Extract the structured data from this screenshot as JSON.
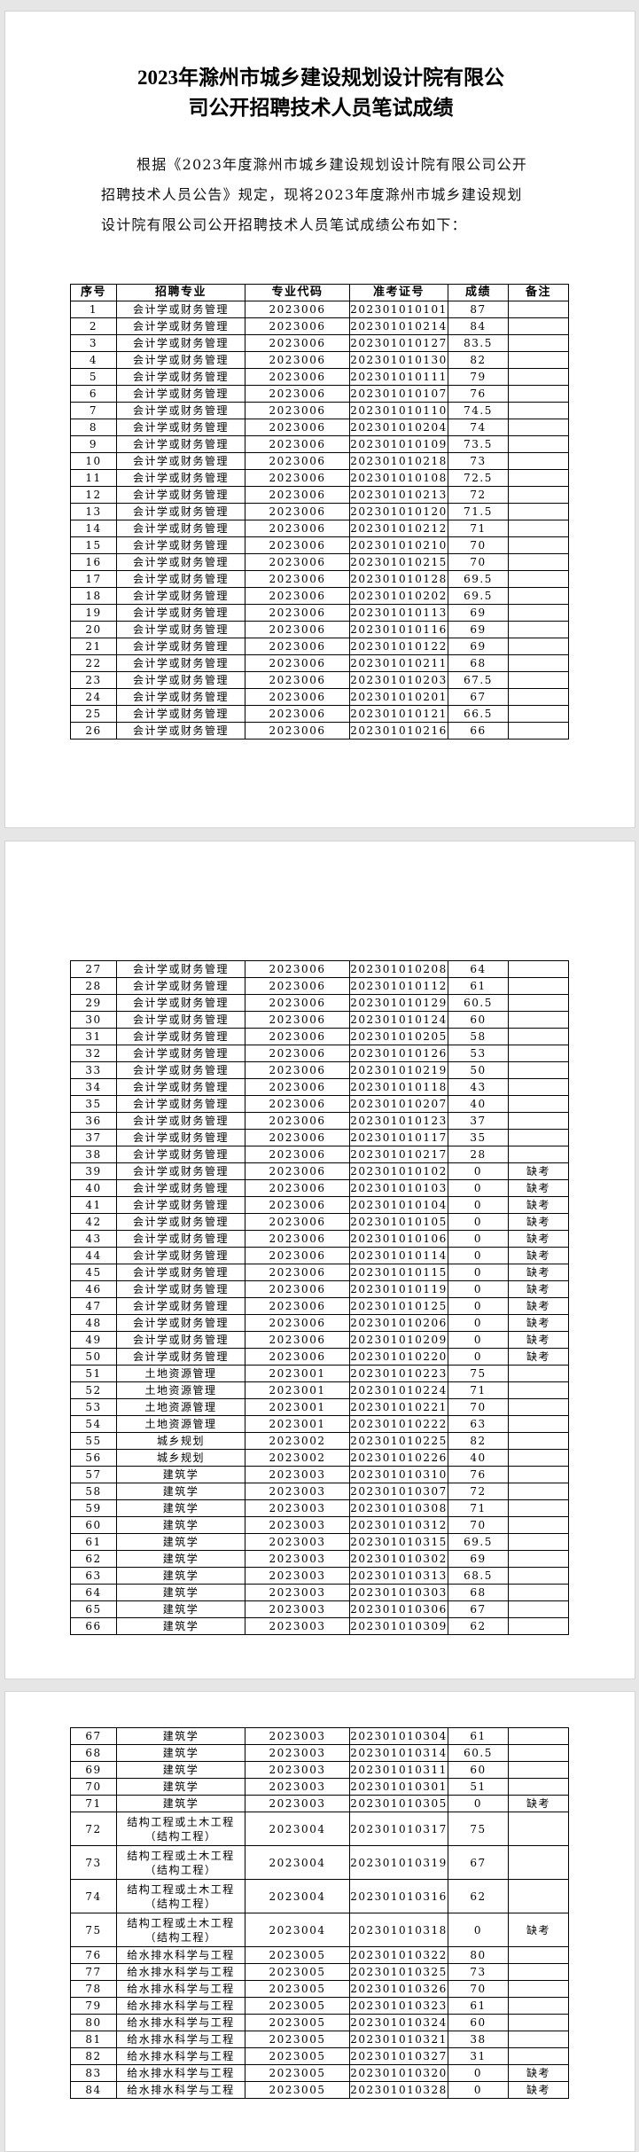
{
  "document": {
    "title_line1": "2023年滁州市城乡建设规划设计院有限公",
    "title_line2": "司公开招聘技术人员笔试成绩",
    "intro": "根据《2023年度滁州市城乡建设规划设计院有限公司公开招聘技术人员公告》规定，现将2023年度滁州市城乡建设规划设计院有限公司公开招聘技术人员笔试成绩公布如下："
  },
  "table": {
    "headers": [
      "序号",
      "招聘专业",
      "专业代码",
      "准考证号",
      "成绩",
      "备注"
    ],
    "pages": [
      {
        "rows": [
          [
            "1",
            "会计学或财务管理",
            "2023006",
            "202301010101",
            "87",
            ""
          ],
          [
            "2",
            "会计学或财务管理",
            "2023006",
            "202301010214",
            "84",
            ""
          ],
          [
            "3",
            "会计学或财务管理",
            "2023006",
            "202301010127",
            "83.5",
            ""
          ],
          [
            "4",
            "会计学或财务管理",
            "2023006",
            "202301010130",
            "82",
            ""
          ],
          [
            "5",
            "会计学或财务管理",
            "2023006",
            "202301010111",
            "79",
            ""
          ],
          [
            "6",
            "会计学或财务管理",
            "2023006",
            "202301010107",
            "76",
            ""
          ],
          [
            "7",
            "会计学或财务管理",
            "2023006",
            "202301010110",
            "74.5",
            ""
          ],
          [
            "8",
            "会计学或财务管理",
            "2023006",
            "202301010204",
            "74",
            ""
          ],
          [
            "9",
            "会计学或财务管理",
            "2023006",
            "202301010109",
            "73.5",
            ""
          ],
          [
            "10",
            "会计学或财务管理",
            "2023006",
            "202301010218",
            "73",
            ""
          ],
          [
            "11",
            "会计学或财务管理",
            "2023006",
            "202301010108",
            "72.5",
            ""
          ],
          [
            "12",
            "会计学或财务管理",
            "2023006",
            "202301010213",
            "72",
            ""
          ],
          [
            "13",
            "会计学或财务管理",
            "2023006",
            "202301010120",
            "71.5",
            ""
          ],
          [
            "14",
            "会计学或财务管理",
            "2023006",
            "202301010212",
            "71",
            ""
          ],
          [
            "15",
            "会计学或财务管理",
            "2023006",
            "202301010210",
            "70",
            ""
          ],
          [
            "16",
            "会计学或财务管理",
            "2023006",
            "202301010215",
            "70",
            ""
          ],
          [
            "17",
            "会计学或财务管理",
            "2023006",
            "202301010128",
            "69.5",
            ""
          ],
          [
            "18",
            "会计学或财务管理",
            "2023006",
            "202301010202",
            "69.5",
            ""
          ],
          [
            "19",
            "会计学或财务管理",
            "2023006",
            "202301010113",
            "69",
            ""
          ],
          [
            "20",
            "会计学或财务管理",
            "2023006",
            "202301010116",
            "69",
            ""
          ],
          [
            "21",
            "会计学或财务管理",
            "2023006",
            "202301010122",
            "69",
            ""
          ],
          [
            "22",
            "会计学或财务管理",
            "2023006",
            "202301010211",
            "68",
            ""
          ],
          [
            "23",
            "会计学或财务管理",
            "2023006",
            "202301010203",
            "67.5",
            ""
          ],
          [
            "24",
            "会计学或财务管理",
            "2023006",
            "202301010201",
            "67",
            ""
          ],
          [
            "25",
            "会计学或财务管理",
            "2023006",
            "202301010121",
            "66.5",
            ""
          ],
          [
            "26",
            "会计学或财务管理",
            "2023006",
            "202301010216",
            "66",
            ""
          ]
        ]
      },
      {
        "rows": [
          [
            "27",
            "会计学或财务管理",
            "2023006",
            "202301010208",
            "64",
            ""
          ],
          [
            "28",
            "会计学或财务管理",
            "2023006",
            "202301010112",
            "61",
            ""
          ],
          [
            "29",
            "会计学或财务管理",
            "2023006",
            "202301010129",
            "60.5",
            ""
          ],
          [
            "30",
            "会计学或财务管理",
            "2023006",
            "202301010124",
            "60",
            ""
          ],
          [
            "31",
            "会计学或财务管理",
            "2023006",
            "202301010205",
            "58",
            ""
          ],
          [
            "32",
            "会计学或财务管理",
            "2023006",
            "202301010126",
            "53",
            ""
          ],
          [
            "33",
            "会计学或财务管理",
            "2023006",
            "202301010219",
            "50",
            ""
          ],
          [
            "34",
            "会计学或财务管理",
            "2023006",
            "202301010118",
            "43",
            ""
          ],
          [
            "35",
            "会计学或财务管理",
            "2023006",
            "202301010207",
            "40",
            ""
          ],
          [
            "36",
            "会计学或财务管理",
            "2023006",
            "202301010123",
            "37",
            ""
          ],
          [
            "37",
            "会计学或财务管理",
            "2023006",
            "202301010117",
            "35",
            ""
          ],
          [
            "38",
            "会计学或财务管理",
            "2023006",
            "202301010217",
            "28",
            ""
          ],
          [
            "39",
            "会计学或财务管理",
            "2023006",
            "202301010102",
            "0",
            "缺考"
          ],
          [
            "40",
            "会计学或财务管理",
            "2023006",
            "202301010103",
            "0",
            "缺考"
          ],
          [
            "41",
            "会计学或财务管理",
            "2023006",
            "202301010104",
            "0",
            "缺考"
          ],
          [
            "42",
            "会计学或财务管理",
            "2023006",
            "202301010105",
            "0",
            "缺考"
          ],
          [
            "43",
            "会计学或财务管理",
            "2023006",
            "202301010106",
            "0",
            "缺考"
          ],
          [
            "44",
            "会计学或财务管理",
            "2023006",
            "202301010114",
            "0",
            "缺考"
          ],
          [
            "45",
            "会计学或财务管理",
            "2023006",
            "202301010115",
            "0",
            "缺考"
          ],
          [
            "46",
            "会计学或财务管理",
            "2023006",
            "202301010119",
            "0",
            "缺考"
          ],
          [
            "47",
            "会计学或财务管理",
            "2023006",
            "202301010125",
            "0",
            "缺考"
          ],
          [
            "48",
            "会计学或财务管理",
            "2023006",
            "202301010206",
            "0",
            "缺考"
          ],
          [
            "49",
            "会计学或财务管理",
            "2023006",
            "202301010209",
            "0",
            "缺考"
          ],
          [
            "50",
            "会计学或财务管理",
            "2023006",
            "202301010220",
            "0",
            "缺考"
          ],
          [
            "51",
            "土地资源管理",
            "2023001",
            "202301010223",
            "75",
            ""
          ],
          [
            "52",
            "土地资源管理",
            "2023001",
            "202301010224",
            "71",
            ""
          ],
          [
            "53",
            "土地资源管理",
            "2023001",
            "202301010221",
            "70",
            ""
          ],
          [
            "54",
            "土地资源管理",
            "2023001",
            "202301010222",
            "63",
            ""
          ],
          [
            "55",
            "城乡规划",
            "2023002",
            "202301010225",
            "82",
            ""
          ],
          [
            "56",
            "城乡规划",
            "2023002",
            "202301010226",
            "40",
            ""
          ],
          [
            "57",
            "建筑学",
            "2023003",
            "202301010310",
            "76",
            ""
          ],
          [
            "58",
            "建筑学",
            "2023003",
            "202301010307",
            "72",
            ""
          ],
          [
            "59",
            "建筑学",
            "2023003",
            "202301010308",
            "71",
            ""
          ],
          [
            "60",
            "建筑学",
            "2023003",
            "202301010312",
            "70",
            ""
          ],
          [
            "61",
            "建筑学",
            "2023003",
            "202301010315",
            "69.5",
            ""
          ],
          [
            "62",
            "建筑学",
            "2023003",
            "202301010302",
            "69",
            ""
          ],
          [
            "63",
            "建筑学",
            "2023003",
            "202301010313",
            "68.5",
            ""
          ],
          [
            "64",
            "建筑学",
            "2023003",
            "202301010303",
            "68",
            ""
          ],
          [
            "65",
            "建筑学",
            "2023003",
            "202301010306",
            "67",
            ""
          ],
          [
            "66",
            "建筑学",
            "2023003",
            "202301010309",
            "62",
            ""
          ]
        ]
      },
      {
        "rows": [
          [
            "67",
            "建筑学",
            "2023003",
            "202301010304",
            "61",
            ""
          ],
          [
            "68",
            "建筑学",
            "2023003",
            "202301010314",
            "60.5",
            ""
          ],
          [
            "69",
            "建筑学",
            "2023003",
            "202301010311",
            "60",
            ""
          ],
          [
            "70",
            "建筑学",
            "2023003",
            "202301010301",
            "51",
            ""
          ],
          [
            "71",
            "建筑学",
            "2023003",
            "202301010305",
            "0",
            "缺考"
          ],
          [
            "72",
            "结构工程或土木工程（结构工程）",
            "2023004",
            "202301010317",
            "75",
            ""
          ],
          [
            "73",
            "结构工程或土木工程（结构工程）",
            "2023004",
            "202301010319",
            "67",
            ""
          ],
          [
            "74",
            "结构工程或土木工程（结构工程）",
            "2023004",
            "202301010316",
            "62",
            ""
          ],
          [
            "75",
            "结构工程或土木工程（结构工程）",
            "2023004",
            "202301010318",
            "0",
            "缺考"
          ],
          [
            "76",
            "给水排水科学与工程",
            "2023005",
            "202301010322",
            "80",
            ""
          ],
          [
            "77",
            "给水排水科学与工程",
            "2023005",
            "202301010325",
            "73",
            ""
          ],
          [
            "78",
            "给水排水科学与工程",
            "2023005",
            "202301010326",
            "70",
            ""
          ],
          [
            "79",
            "给水排水科学与工程",
            "2023005",
            "202301010323",
            "61",
            ""
          ],
          [
            "80",
            "给水排水科学与工程",
            "2023005",
            "202301010324",
            "60",
            ""
          ],
          [
            "81",
            "给水排水科学与工程",
            "2023005",
            "202301010321",
            "38",
            ""
          ],
          [
            "82",
            "给水排水科学与工程",
            "2023005",
            "202301010327",
            "31",
            ""
          ],
          [
            "83",
            "给水排水科学与工程",
            "2023005",
            "202301010320",
            "0",
            "缺考"
          ],
          [
            "84",
            "给水排水科学与工程",
            "2023005",
            "202301010328",
            "0",
            "缺考"
          ]
        ]
      }
    ]
  }
}
